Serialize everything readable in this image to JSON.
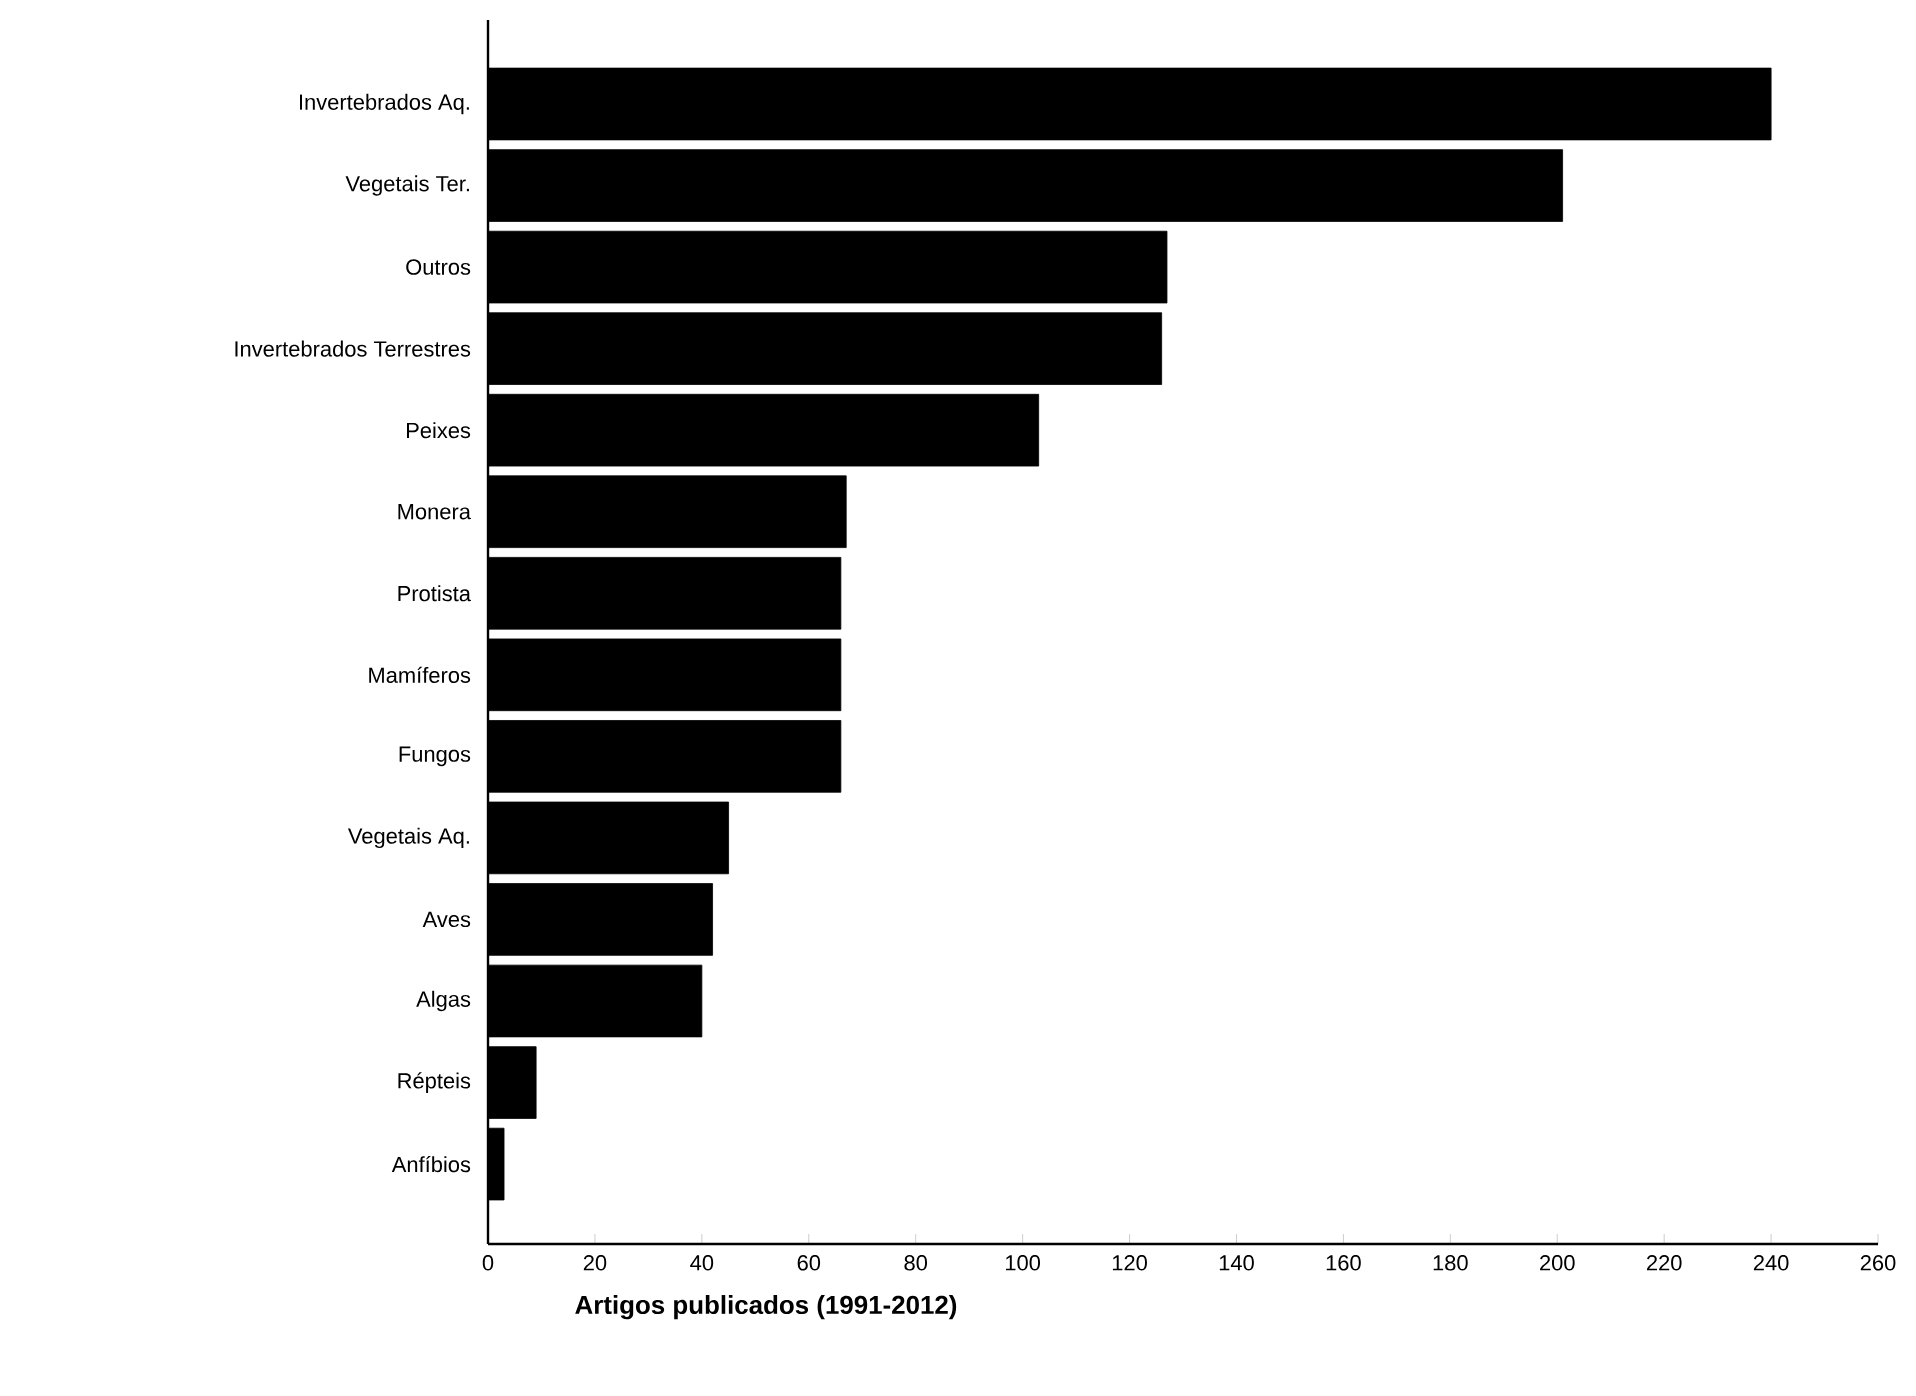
{
  "chart_data": {
    "type": "bar",
    "orientation": "horizontal",
    "xlabel": "Artigos publicados (1991-2012)",
    "categories": [
      "Invertebrados Aq.",
      "Vegetais Ter.",
      "Outros",
      "Invertebrados Terrestres",
      "Peixes",
      "Monera",
      "Protista",
      "Mamíferos",
      "Fungos",
      "Vegetais Aq.",
      "Aves",
      "Algas",
      "Répteis",
      "Anfíbios"
    ],
    "values": [
      240,
      201,
      127,
      126,
      103,
      67,
      66,
      66,
      66,
      45,
      42,
      40,
      9,
      3
    ],
    "color": "#000000",
    "xlim": [
      0,
      260
    ],
    "xticks": [
      0,
      20,
      40,
      60,
      80,
      100,
      120,
      140,
      160,
      180,
      200,
      220,
      240,
      260
    ]
  }
}
